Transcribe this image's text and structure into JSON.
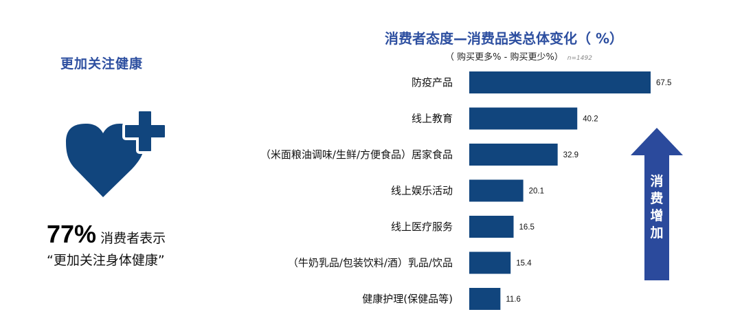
{
  "left_panel": {
    "title": "更加关注健康",
    "stat_value": "77%",
    "stat_text": "消费者表示",
    "stat_quote": "“更加关注身体健康”"
  },
  "chart_data": {
    "type": "bar",
    "orientation": "horizontal",
    "title": "消费者态度—消费品类总体变化（ %）",
    "subtitle": "（ 购买更多% - 购买更少%）",
    "note": "n=1492",
    "categories": [
      "防疫产品",
      "线上教育",
      "（米面粮油调味/生鲜/方便食品）居家食品",
      "线上娱乐活动",
      "线上医疗服务",
      "（牛奶乳品/包装饮料/酒）乳品/饮品",
      "健康护理(保健品等)"
    ],
    "values": [
      67.5,
      40.2,
      32.9,
      20.1,
      16.5,
      15.4,
      11.6
    ],
    "value_labels": [
      "67.5",
      "40.2",
      "32.9",
      "20.1",
      "16.5",
      "15.4",
      "11.6"
    ],
    "xlim": [
      0,
      67.5
    ],
    "bar_color": "#11457d",
    "grid": false,
    "legend": "none"
  },
  "arrow": {
    "chars": [
      "消",
      "费",
      "增",
      "加"
    ],
    "color": "#2b4a9c"
  },
  "colors": {
    "heading_blue": "#2d4fa0",
    "heart_blue": "#11457d",
    "text": "#111111"
  },
  "icons": {
    "heart": "heart-plus-icon"
  }
}
